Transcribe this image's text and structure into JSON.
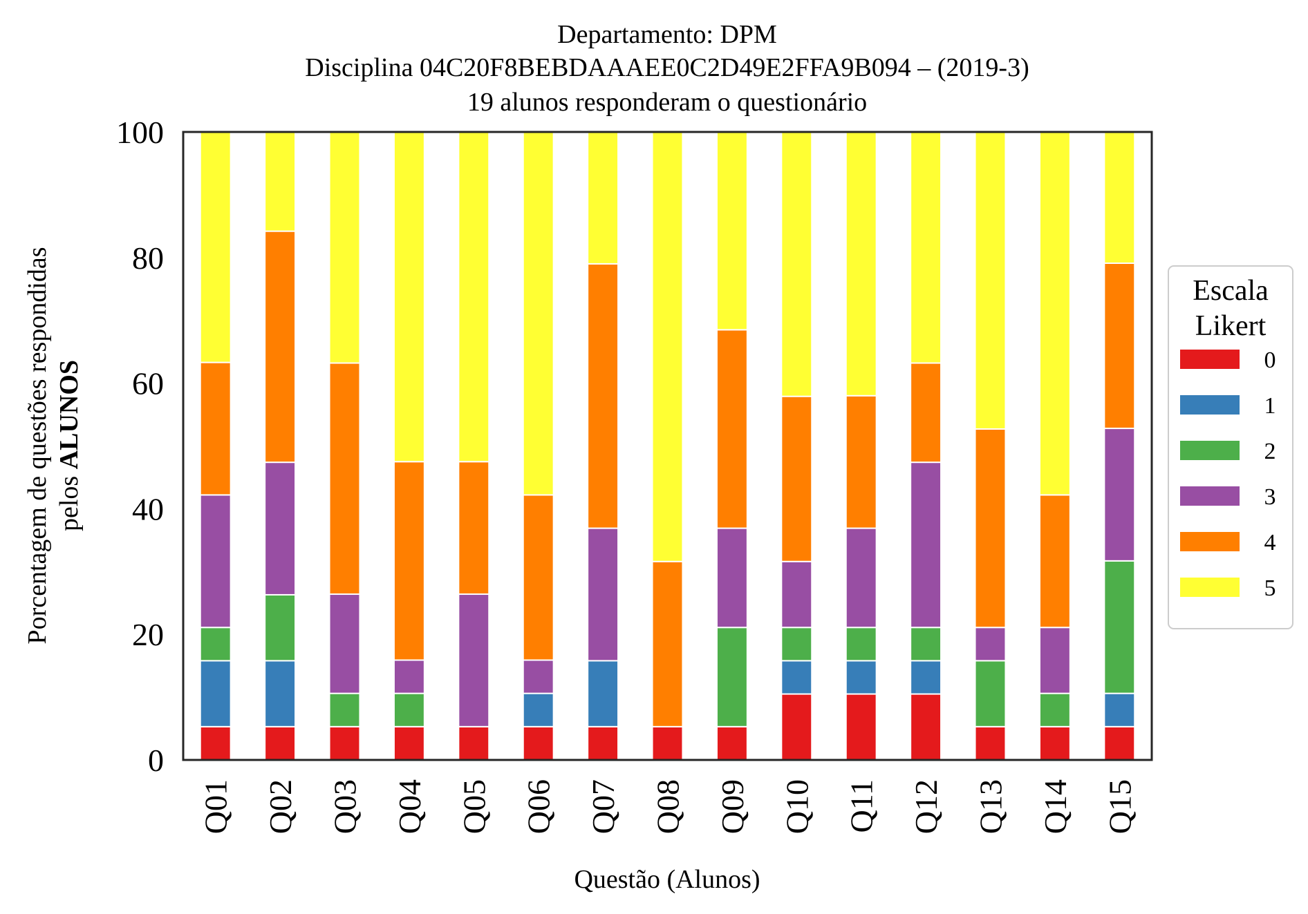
{
  "chart_data": {
    "type": "bar",
    "stacked": true,
    "title_lines": [
      "Departamento: DPM",
      "Disciplina 04C20F8BEBDAAAEE0C2D49E2FFA9B094 – (2019-3)",
      "19 alunos responderam o questionário"
    ],
    "xlabel": "Questão (Alunos)",
    "ylabel_lines": [
      "Porcentagem de questões respondidas",
      "pelos ",
      "ALUNOS"
    ],
    "ylim": [
      0,
      100
    ],
    "yticks": [
      "0",
      "20",
      "40",
      "60",
      "80",
      "100"
    ],
    "categories": [
      "Q01",
      "Q02",
      "Q03",
      "Q04",
      "Q05",
      "Q06",
      "Q07",
      "Q08",
      "Q09",
      "Q10",
      "Q11",
      "Q12",
      "Q13",
      "Q14",
      "Q15"
    ],
    "legend": {
      "title_lines": [
        "Escala",
        "Likert"
      ],
      "position": "right"
    },
    "grid": false,
    "series": [
      {
        "name": "0",
        "color": "#e41a1c",
        "values": [
          5.3,
          5.3,
          5.3,
          5.3,
          5.3,
          5.3,
          5.3,
          5.3,
          5.3,
          10.5,
          10.5,
          10.5,
          5.3,
          5.3,
          5.3
        ]
      },
      {
        "name": "1",
        "color": "#377eb8",
        "values": [
          10.5,
          10.5,
          0,
          0,
          0,
          5.3,
          10.5,
          0,
          0,
          5.3,
          5.3,
          5.3,
          0,
          0,
          5.3
        ]
      },
      {
        "name": "2",
        "color": "#4daf4a",
        "values": [
          5.3,
          10.5,
          5.3,
          5.3,
          0,
          0,
          0,
          0,
          15.8,
          5.3,
          5.3,
          5.3,
          10.5,
          5.3,
          21.1
        ]
      },
      {
        "name": "3",
        "color": "#984ea3",
        "values": [
          21.1,
          21.1,
          15.8,
          5.3,
          21.1,
          5.3,
          21.1,
          0,
          15.8,
          10.5,
          15.8,
          26.3,
          5.3,
          10.5,
          21.1
        ]
      },
      {
        "name": "4",
        "color": "#ff7f00",
        "values": [
          21.1,
          36.8,
          36.8,
          31.6,
          21.1,
          26.3,
          42.1,
          26.3,
          31.6,
          26.3,
          21.1,
          15.8,
          31.6,
          21.1,
          26.3
        ]
      },
      {
        "name": "5",
        "color": "#ffff33",
        "values": [
          36.8,
          15.8,
          36.8,
          52.6,
          52.6,
          57.9,
          21.1,
          68.4,
          31.6,
          42.1,
          42.1,
          36.8,
          47.4,
          57.9,
          21.1
        ]
      }
    ]
  }
}
